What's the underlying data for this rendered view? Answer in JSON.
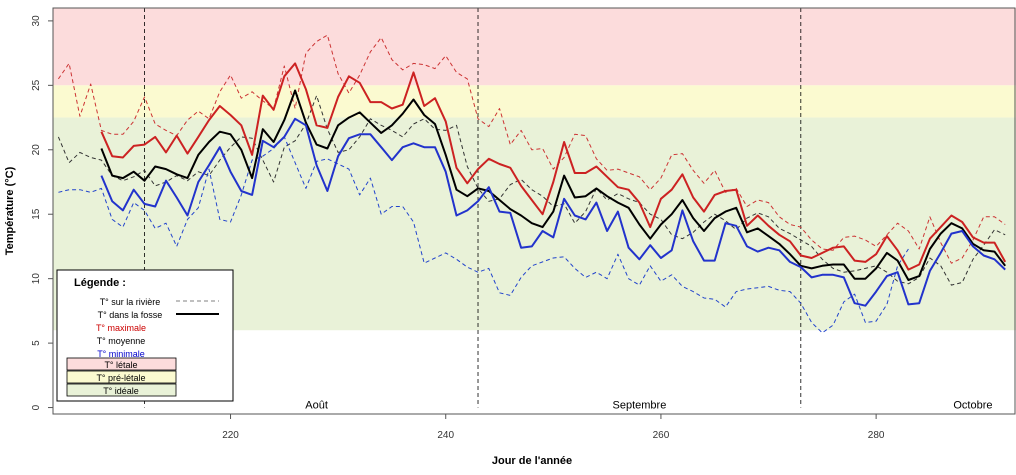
{
  "chart_data": {
    "type": "line",
    "title": "",
    "xlabel": "Jour de l'année",
    "ylabel": "Température (°C)",
    "xlim": [
      203.5,
      293
    ],
    "ylim": [
      -0.5,
      31
    ],
    "grid": false,
    "xticks": [
      220,
      240,
      260,
      280
    ],
    "yticks": [
      0,
      5,
      10,
      15,
      20,
      25,
      30
    ],
    "zones": [
      {
        "name": "T° létale",
        "from": 25,
        "to": 31,
        "color": "#fcdcdc"
      },
      {
        "name": "T° pré-létale",
        "from": 22.5,
        "to": 25,
        "color": "#fbfad0"
      },
      {
        "name": "T° idéale",
        "from": 6,
        "to": 22.5,
        "color": "#e9f2d8"
      }
    ],
    "month_lines": [
      212,
      243,
      273
    ],
    "month_labels": [
      {
        "day": 228,
        "label": "Août"
      },
      {
        "day": 258,
        "label": "Septembre"
      },
      {
        "day": 289,
        "label": "Octobre"
      }
    ],
    "legend": {
      "title": "Légende :",
      "entries": [
        {
          "label": "T° sur la rivière",
          "style": "dashed",
          "color": "#808080"
        },
        {
          "label": "T° dans la fosse",
          "style": "solid",
          "color": "#000000"
        },
        {
          "label": "T° maximale",
          "style": "text",
          "color": "#cc0000"
        },
        {
          "label": "T° moyenne",
          "style": "text",
          "color": "#000000"
        },
        {
          "label": "T° minimale",
          "style": "text",
          "color": "#0000cc"
        },
        {
          "label": "T° létale",
          "style": "box",
          "color": "#fcdcdc"
        },
        {
          "label": "T° pré-létale",
          "style": "box",
          "color": "#fbfad0"
        },
        {
          "label": "T° idéale",
          "style": "box",
          "color": "#e9f2d8"
        }
      ]
    },
    "series": [
      {
        "name": "T° maximale",
        "group": "fosse",
        "color": "#cc2222",
        "dash": "none",
        "width": 2,
        "x_start": 208,
        "values": [
          21.4,
          19.5,
          19.4,
          20.3,
          20.4,
          21.0,
          19.8,
          21.1,
          19.7,
          21.0,
          22.3,
          23.4,
          22.7,
          21.9,
          19.6,
          24.2,
          23.1,
          25.7,
          26.7,
          24.7,
          21.9,
          21.7,
          24.1,
          25.7,
          25.2,
          23.7,
          23.7,
          23.2,
          23.5,
          26.0,
          23.4,
          24.0,
          22.2,
          18.6,
          17.4,
          18.5,
          19.3,
          18.9,
          18.6,
          17.2,
          16.1,
          15.0,
          17.5,
          20.6,
          18.2,
          18.2,
          18.7,
          17.9,
          17.1,
          16.9,
          15.9,
          14.0,
          16.2,
          16.9,
          18.1,
          16.3,
          15.2,
          16.5,
          16.8,
          16.9,
          14.1,
          14.9,
          14.1,
          13.4,
          12.9,
          11.8,
          11.6,
          12.0,
          12.4,
          12.5,
          11.4,
          11.3,
          11.9,
          13.3,
          12.2,
          10.7,
          11.1,
          13.1,
          14.0,
          14.9,
          14.4,
          13.2,
          12.8,
          12.8,
          11.3
        ]
      },
      {
        "name": "T° moyenne",
        "group": "fosse",
        "color": "#000000",
        "dash": "none",
        "width": 2,
        "x_start": 208,
        "values": [
          20.1,
          18.0,
          17.8,
          18.3,
          17.6,
          18.7,
          18.5,
          18.1,
          17.8,
          19.6,
          20.6,
          21.4,
          21.2,
          20.0,
          17.8,
          21.6,
          20.6,
          22.3,
          24.6,
          22.1,
          20.4,
          20.1,
          21.9,
          22.5,
          22.9,
          22.1,
          21.3,
          21.9,
          22.8,
          23.9,
          22.7,
          22.0,
          19.6,
          16.9,
          16.4,
          17.0,
          16.8,
          16.1,
          15.4,
          14.9,
          14.3,
          14.0,
          15.2,
          18.0,
          16.3,
          16.4,
          17.0,
          16.4,
          15.9,
          15.5,
          14.2,
          13.1,
          14.2,
          15.0,
          16.1,
          14.7,
          13.7,
          14.7,
          15.2,
          15.5,
          13.6,
          13.9,
          13.3,
          12.7,
          11.9,
          11.0,
          10.8,
          11.0,
          11.1,
          11.1,
          10.0,
          10.0,
          10.8,
          12.0,
          11.4,
          9.9,
          10.2,
          12.3,
          13.5,
          14.3,
          13.9,
          12.7,
          12.2,
          12.1,
          11.0
        ]
      },
      {
        "name": "T° minimale",
        "group": "fosse",
        "color": "#2233cc",
        "dash": "none",
        "width": 2,
        "x_start": 208,
        "values": [
          18.0,
          16.0,
          15.3,
          16.9,
          15.8,
          15.6,
          17.6,
          16.3,
          14.9,
          17.5,
          18.8,
          20.2,
          18.3,
          16.8,
          16.5,
          20.7,
          20.2,
          21.0,
          22.4,
          21.9,
          18.8,
          16.8,
          19.5,
          20.9,
          21.2,
          21.2,
          20.2,
          19.2,
          20.2,
          20.5,
          20.2,
          20.2,
          18.3,
          14.9,
          15.3,
          16.0,
          17.1,
          15.2,
          15.1,
          12.4,
          12.5,
          13.7,
          13.2,
          16.2,
          14.9,
          14.6,
          15.9,
          13.7,
          15.2,
          12.4,
          11.5,
          12.6,
          11.6,
          12.2,
          15.3,
          12.9,
          11.4,
          11.4,
          14.3,
          14.1,
          12.5,
          12.1,
          12.4,
          12.2,
          11.3,
          10.9,
          10.1,
          10.3,
          10.3,
          10.1,
          8.1,
          7.9,
          9.0,
          10.2,
          10.5,
          8.0,
          8.1,
          10.6,
          12.0,
          13.5,
          13.7,
          12.5,
          11.8,
          11.5,
          10.7
        ]
      },
      {
        "name": "Rivière moyenne",
        "group": "riviere",
        "color": "#333333",
        "dash": "4,3",
        "width": 1,
        "x_start": 204,
        "values": [
          21.0,
          19.0,
          19.8,
          19.4,
          19.2,
          18.0,
          17.6,
          17.9,
          18.4,
          17.2,
          17.5,
          18.0,
          17.6,
          18.3,
          18.0,
          19.2,
          20.2,
          21.0,
          20.9,
          19.2,
          17.5,
          20.2,
          20.7,
          22.0,
          24.2,
          21.6,
          19.8,
          20.0,
          21.0,
          22.4,
          21.9,
          21.5,
          21.0,
          22.0,
          22.4,
          21.6,
          21.5,
          21.9,
          18.7,
          17.0,
          16.0,
          16.2,
          17.3,
          17.7,
          16.9,
          16.4,
          15.6,
          15.8,
          14.3,
          15.2,
          17.0,
          16.1,
          16.6,
          16.2,
          15.9,
          15.0,
          14.6,
          13.4,
          13.1,
          13.6,
          14.4,
          15.0,
          14.5,
          13.8,
          14.7,
          15.1,
          14.8,
          13.9,
          13.5,
          13.0,
          12.5,
          11.5,
          10.8,
          10.5,
          10.6,
          10.8,
          11.0,
          10.5,
          9.8,
          9.6,
          10.1,
          11.6,
          11.0,
          9.5,
          9.7,
          11.5,
          12.6,
          13.8,
          13.4
        ]
      },
      {
        "name": "Rivière maximale",
        "group": "riviere",
        "color": "#cc3333",
        "dash": "4,3",
        "width": 1,
        "x_start": 204,
        "values": [
          25.5,
          26.7,
          22.6,
          25.1,
          21.5,
          21.2,
          21.2,
          22.2,
          24.1,
          22.0,
          21.5,
          21.1,
          22.3,
          23.0,
          22.4,
          24.5,
          25.8,
          24.0,
          24.5,
          23.8,
          23.2,
          26.5,
          23.2,
          27.5,
          28.4,
          28.9,
          25.9,
          24.4,
          25.8,
          27.6,
          28.7,
          27.0,
          26.2,
          26.7,
          26.6,
          26.3,
          27.3,
          26.0,
          25.5,
          22.4,
          21.8,
          23.2,
          20.4,
          21.5,
          20.0,
          20.1,
          18.5,
          19.4,
          21.2,
          21.1,
          19.3,
          18.4,
          18.5,
          18.2,
          17.9,
          16.9,
          17.8,
          19.6,
          19.7,
          18.4,
          17.4,
          18.4,
          16.7,
          17.0,
          15.6,
          16.1,
          15.9,
          14.8,
          14.2,
          14.0,
          13.0,
          12.3,
          12.2,
          13.2,
          13.3,
          13.0,
          12.5,
          13.4,
          14.3,
          13.7,
          12.3,
          14.8,
          12.8,
          11.2,
          11.6,
          13.0,
          14.8,
          14.8,
          14.2
        ]
      },
      {
        "name": "Rivière minimale",
        "group": "riviere",
        "color": "#2244cc",
        "dash": "4,3",
        "width": 1,
        "x_start": 204,
        "values": [
          16.7,
          16.9,
          16.9,
          16.7,
          17.0,
          14.6,
          14.0,
          15.9,
          15.3,
          13.9,
          14.3,
          12.5,
          14.6,
          15.5,
          18.5,
          14.6,
          14.4,
          16.5,
          19.2,
          19.5,
          20.1,
          21.0,
          19.0,
          17.0,
          19.1,
          19.3,
          18.9,
          18.5,
          16.5,
          17.8,
          15.0,
          15.6,
          15.6,
          14.4,
          11.2,
          11.6,
          12.0,
          11.5,
          10.9,
          10.5,
          10.8,
          8.9,
          8.7,
          10.1,
          11.0,
          11.3,
          11.6,
          11.7,
          10.8,
          10.1,
          10.5,
          10.0,
          11.9,
          10.0,
          9.5,
          11.0,
          9.8,
          10.3,
          9.4,
          9.0,
          8.5,
          8.4,
          7.8,
          9.0,
          9.2,
          9.3,
          9.4,
          9.1,
          9.0,
          8.1,
          6.6,
          5.8,
          6.4,
          8.2,
          8.8,
          6.6,
          6.7,
          8.0,
          11.0,
          12.3
        ]
      }
    ]
  }
}
